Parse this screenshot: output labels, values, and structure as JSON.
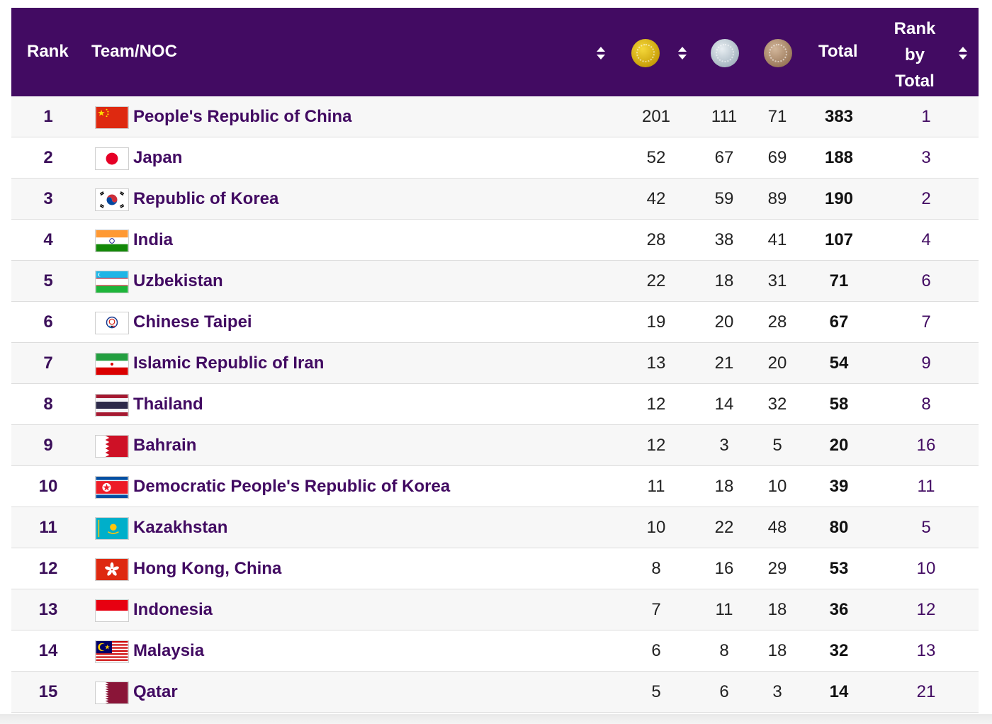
{
  "header": {
    "rank": "Rank",
    "team": "Team/NOC",
    "gold_icon": "gold-medal-icon",
    "silver_icon": "silver-medal-icon",
    "bronze_icon": "bronze-medal-icon",
    "total": "Total",
    "rank_by_total_1": "Rank",
    "rank_by_total_2": "by",
    "rank_by_total_3": "Total"
  },
  "colors": {
    "header_bg": "#420b62",
    "team_name": "#420b62",
    "row_alt": "#f7f7f7"
  },
  "rows": [
    {
      "rank": "1",
      "flag": "china-flag-icon",
      "name": "People's Republic of China",
      "gold": "201",
      "silver": "111",
      "bronze": "71",
      "total": "383",
      "rank_by_total": "1"
    },
    {
      "rank": "2",
      "flag": "japan-flag-icon",
      "name": "Japan",
      "gold": "52",
      "silver": "67",
      "bronze": "69",
      "total": "188",
      "rank_by_total": "3"
    },
    {
      "rank": "3",
      "flag": "korea-flag-icon",
      "name": "Republic of Korea",
      "gold": "42",
      "silver": "59",
      "bronze": "89",
      "total": "190",
      "rank_by_total": "2"
    },
    {
      "rank": "4",
      "flag": "india-flag-icon",
      "name": "India",
      "gold": "28",
      "silver": "38",
      "bronze": "41",
      "total": "107",
      "rank_by_total": "4"
    },
    {
      "rank": "5",
      "flag": "uzbekistan-flag-icon",
      "name": "Uzbekistan",
      "gold": "22",
      "silver": "18",
      "bronze": "31",
      "total": "71",
      "rank_by_total": "6"
    },
    {
      "rank": "6",
      "flag": "chinese-taipei-flag-icon",
      "name": "Chinese Taipei",
      "gold": "19",
      "silver": "20",
      "bronze": "28",
      "total": "67",
      "rank_by_total": "7"
    },
    {
      "rank": "7",
      "flag": "iran-flag-icon",
      "name": "Islamic Republic of Iran",
      "gold": "13",
      "silver": "21",
      "bronze": "20",
      "total": "54",
      "rank_by_total": "9"
    },
    {
      "rank": "8",
      "flag": "thailand-flag-icon",
      "name": "Thailand",
      "gold": "12",
      "silver": "14",
      "bronze": "32",
      "total": "58",
      "rank_by_total": "8"
    },
    {
      "rank": "9",
      "flag": "bahrain-flag-icon",
      "name": "Bahrain",
      "gold": "12",
      "silver": "3",
      "bronze": "5",
      "total": "20",
      "rank_by_total": "16"
    },
    {
      "rank": "10",
      "flag": "dpr-korea-flag-icon",
      "name": "Democratic People's Republic of Korea",
      "gold": "11",
      "silver": "18",
      "bronze": "10",
      "total": "39",
      "rank_by_total": "11"
    },
    {
      "rank": "11",
      "flag": "kazakhstan-flag-icon",
      "name": "Kazakhstan",
      "gold": "10",
      "silver": "22",
      "bronze": "48",
      "total": "80",
      "rank_by_total": "5"
    },
    {
      "rank": "12",
      "flag": "hong-kong-flag-icon",
      "name": "Hong Kong, China",
      "gold": "8",
      "silver": "16",
      "bronze": "29",
      "total": "53",
      "rank_by_total": "10"
    },
    {
      "rank": "13",
      "flag": "indonesia-flag-icon",
      "name": "Indonesia",
      "gold": "7",
      "silver": "11",
      "bronze": "18",
      "total": "36",
      "rank_by_total": "12"
    },
    {
      "rank": "14",
      "flag": "malaysia-flag-icon",
      "name": "Malaysia",
      "gold": "6",
      "silver": "8",
      "bronze": "18",
      "total": "32",
      "rank_by_total": "13"
    },
    {
      "rank": "15",
      "flag": "qatar-flag-icon",
      "name": "Qatar",
      "gold": "5",
      "silver": "6",
      "bronze": "3",
      "total": "14",
      "rank_by_total": "21"
    }
  ]
}
